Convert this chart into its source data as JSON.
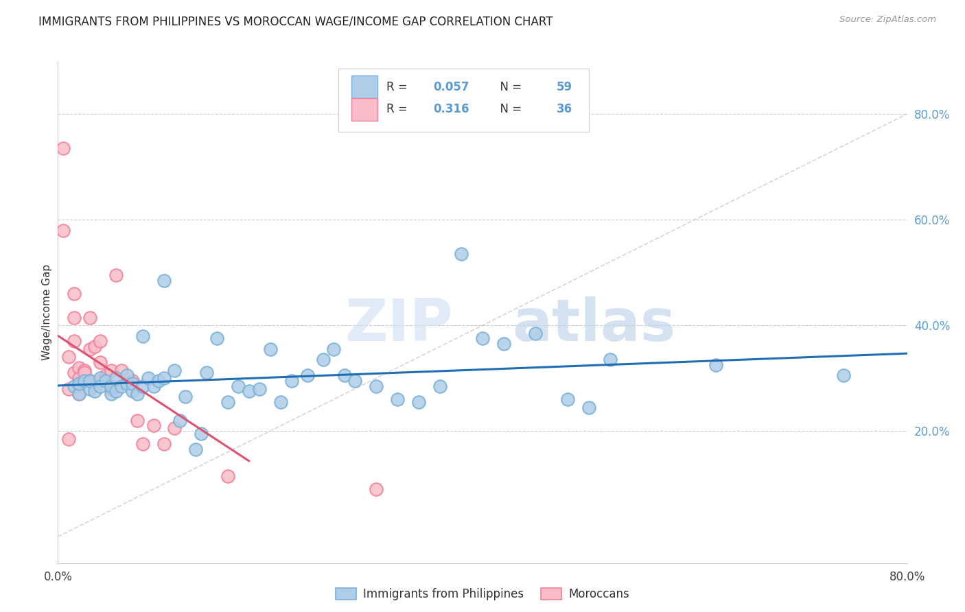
{
  "title": "IMMIGRANTS FROM PHILIPPINES VS MOROCCAN WAGE/INCOME GAP CORRELATION CHART",
  "source": "Source: ZipAtlas.com",
  "ylabel": "Wage/Income Gap",
  "xlim": [
    0.0,
    0.8
  ],
  "ylim": [
    -0.05,
    0.9
  ],
  "watermark_zip": "ZIP",
  "watermark_atlas": "atlas",
  "legend_R1": "0.057",
  "legend_N1": "59",
  "legend_R2": "0.316",
  "legend_N2": "36",
  "blue_scatter_face": "#aecde8",
  "blue_scatter_edge": "#7ab0d4",
  "pink_scatter_face": "#f9bdc8",
  "pink_scatter_edge": "#f08098",
  "blue_line_color": "#1f6eb5",
  "pink_line_color": "#e05070",
  "diag_line_color": "#cccccc",
  "right_tick_color": "#5b9bd5",
  "philippines_x": [
    0.015,
    0.02,
    0.02,
    0.025,
    0.03,
    0.03,
    0.035,
    0.04,
    0.04,
    0.045,
    0.05,
    0.05,
    0.055,
    0.055,
    0.06,
    0.065,
    0.065,
    0.07,
    0.07,
    0.075,
    0.08,
    0.08,
    0.085,
    0.09,
    0.095,
    0.1,
    0.1,
    0.11,
    0.115,
    0.12,
    0.13,
    0.135,
    0.14,
    0.15,
    0.16,
    0.17,
    0.18,
    0.19,
    0.2,
    0.21,
    0.22,
    0.235,
    0.25,
    0.26,
    0.27,
    0.28,
    0.3,
    0.32,
    0.34,
    0.36,
    0.38,
    0.4,
    0.42,
    0.45,
    0.48,
    0.5,
    0.52,
    0.62,
    0.74
  ],
  "philippines_y": [
    0.285,
    0.27,
    0.29,
    0.295,
    0.28,
    0.295,
    0.275,
    0.3,
    0.285,
    0.295,
    0.27,
    0.285,
    0.3,
    0.275,
    0.285,
    0.29,
    0.305,
    0.275,
    0.29,
    0.27,
    0.38,
    0.285,
    0.3,
    0.285,
    0.295,
    0.485,
    0.3,
    0.315,
    0.22,
    0.265,
    0.165,
    0.195,
    0.31,
    0.375,
    0.255,
    0.285,
    0.275,
    0.28,
    0.355,
    0.255,
    0.295,
    0.305,
    0.335,
    0.355,
    0.305,
    0.295,
    0.285,
    0.26,
    0.255,
    0.285,
    0.535,
    0.375,
    0.365,
    0.385,
    0.26,
    0.245,
    0.335,
    0.325,
    0.305
  ],
  "moroccan_x": [
    0.005,
    0.005,
    0.01,
    0.01,
    0.01,
    0.015,
    0.015,
    0.015,
    0.015,
    0.02,
    0.02,
    0.02,
    0.02,
    0.025,
    0.025,
    0.03,
    0.03,
    0.03,
    0.035,
    0.035,
    0.04,
    0.04,
    0.04,
    0.045,
    0.05,
    0.05,
    0.055,
    0.06,
    0.07,
    0.075,
    0.08,
    0.09,
    0.1,
    0.11,
    0.16,
    0.3
  ],
  "moroccan_y": [
    0.735,
    0.58,
    0.34,
    0.28,
    0.185,
    0.46,
    0.415,
    0.37,
    0.31,
    0.32,
    0.3,
    0.285,
    0.27,
    0.315,
    0.31,
    0.415,
    0.355,
    0.295,
    0.36,
    0.29,
    0.37,
    0.33,
    0.295,
    0.305,
    0.315,
    0.28,
    0.495,
    0.315,
    0.295,
    0.22,
    0.175,
    0.21,
    0.175,
    0.205,
    0.115,
    0.09
  ]
}
